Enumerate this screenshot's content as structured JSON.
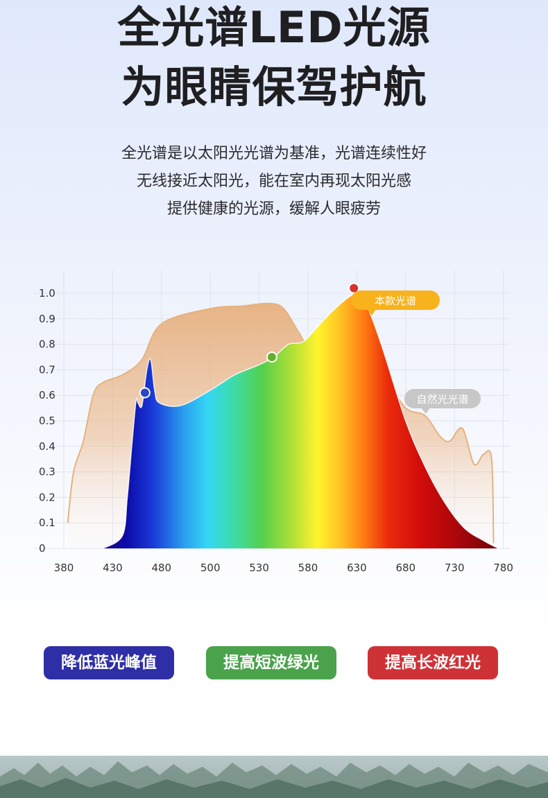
{
  "header": {
    "title_line1": "全光谱LED光源",
    "title_line2": "为眼睛保驾护航"
  },
  "description": [
    "全光谱是以太阳光光谱为基准，光谱连续性好",
    "无线接近太阳光，能在室内再现太阳光感",
    "提供健康的光源，缓解人眼疲劳"
  ],
  "chart_data": {
    "type": "area",
    "x_ticks": [
      380,
      430,
      480,
      500,
      530,
      580,
      630,
      680,
      730,
      780
    ],
    "y_ticks": [
      "0",
      "0.1",
      "0.2",
      "0.3",
      "0.4",
      "0.5",
      "0.6",
      "0.7",
      "0.8",
      "0.9",
      "1.0"
    ],
    "ylim": [
      0,
      1.0
    ],
    "grid": true,
    "series": [
      {
        "name": "自然光光谱",
        "color": "#e6b27c",
        "points": [
          [
            384,
            0.1
          ],
          [
            390,
            0.3
          ],
          [
            400,
            0.42
          ],
          [
            410,
            0.6
          ],
          [
            420,
            0.65
          ],
          [
            440,
            0.68
          ],
          [
            460,
            0.74
          ],
          [
            480,
            0.88
          ],
          [
            500,
            0.94
          ],
          [
            520,
            0.95
          ],
          [
            540,
            0.96
          ],
          [
            555,
            0.94
          ],
          [
            570,
            0.85
          ],
          [
            580,
            0.8
          ],
          [
            600,
            0.82
          ],
          [
            620,
            0.8
          ],
          [
            640,
            0.72
          ],
          [
            660,
            0.66
          ],
          [
            680,
            0.55
          ],
          [
            700,
            0.52
          ],
          [
            715,
            0.44
          ],
          [
            725,
            0.42
          ],
          [
            738,
            0.47
          ],
          [
            750,
            0.33
          ],
          [
            760,
            0.37
          ],
          [
            768,
            0.35
          ],
          [
            770,
            0.02
          ]
        ]
      },
      {
        "name": "本款光谱",
        "points": [
          [
            420,
            0
          ],
          [
            440,
            0.05
          ],
          [
            445,
            0.2
          ],
          [
            450,
            0.42
          ],
          [
            454,
            0.58
          ],
          [
            456,
            0.57
          ],
          [
            460,
            0.56
          ],
          [
            465,
            0.7
          ],
          [
            469,
            0.74
          ],
          [
            473,
            0.62
          ],
          [
            478,
            0.57
          ],
          [
            488,
            0.56
          ],
          [
            500,
            0.62
          ],
          [
            515,
            0.68
          ],
          [
            530,
            0.72
          ],
          [
            545,
            0.75
          ],
          [
            560,
            0.8
          ],
          [
            575,
            0.81
          ],
          [
            590,
            0.87
          ],
          [
            605,
            0.93
          ],
          [
            620,
            0.98
          ],
          [
            628,
            0.99
          ],
          [
            640,
            0.95
          ],
          [
            655,
            0.8
          ],
          [
            680,
            0.5
          ],
          [
            700,
            0.32
          ],
          [
            720,
            0.18
          ],
          [
            740,
            0.08
          ],
          [
            760,
            0.03
          ],
          [
            775,
            0
          ]
        ]
      }
    ],
    "markers": [
      {
        "x": 463,
        "y": 0.61,
        "color": "#2747c4"
      },
      {
        "x": 543,
        "y": 0.75,
        "color": "#6aae2f"
      },
      {
        "x": 627,
        "y": 1.02,
        "color": "#d5342b"
      }
    ],
    "annotations": [
      {
        "text": "本款光谱",
        "series": "本款光谱",
        "color": "#f8b21c"
      },
      {
        "text": "自然光光谱",
        "series": "自然光光谱",
        "color": "#c7c7c7"
      }
    ]
  },
  "buttons": [
    {
      "label": "降低蓝光峰值",
      "color": "#2e2fa6"
    },
    {
      "label": "提高短波绿光",
      "color": "#4aa34b"
    },
    {
      "label": "提高长波红光",
      "color": "#cf3236"
    }
  ]
}
